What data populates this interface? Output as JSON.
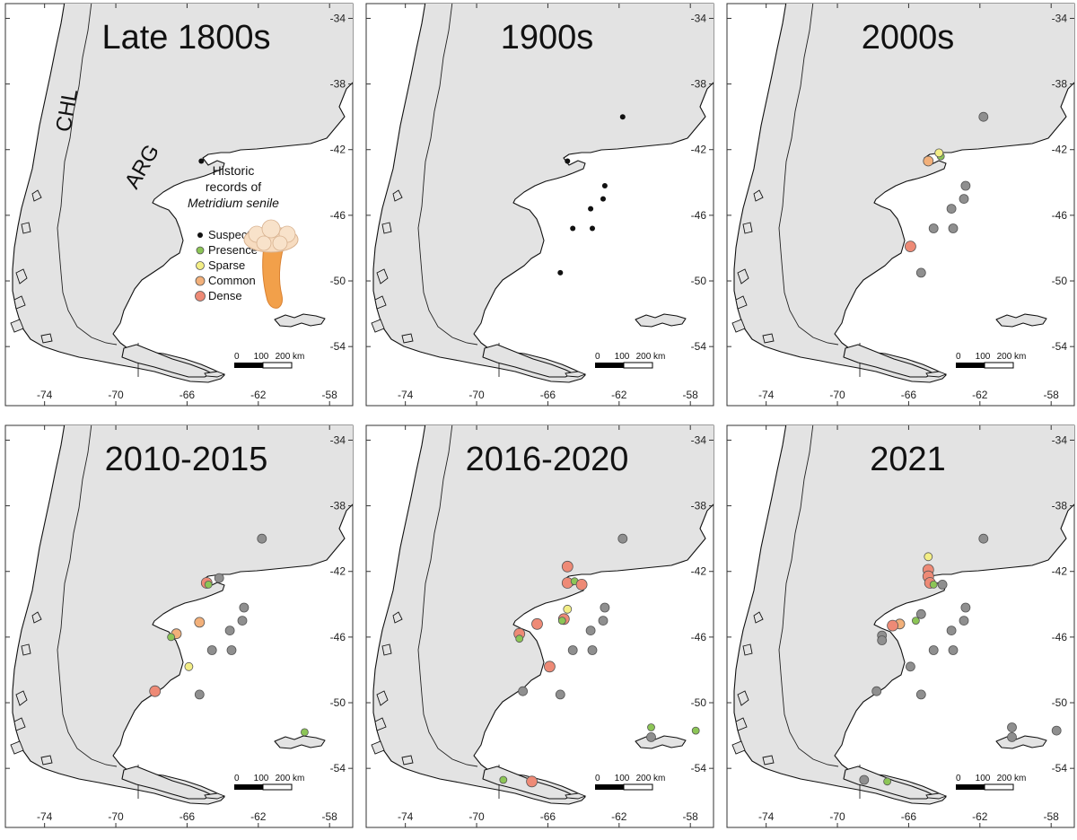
{
  "figure": {
    "lon_ticks": [
      "-74",
      "-70",
      "-66",
      "-62",
      "-58"
    ],
    "lat_ticks": [
      "-34",
      "-38",
      "-42",
      "-46",
      "-50",
      "-54"
    ],
    "country_labels": [
      "CHL",
      "ARG"
    ],
    "scale_labels": [
      "0",
      "100",
      "200 km"
    ]
  },
  "legend": {
    "title_line1": "Historic",
    "title_line2": "records of",
    "title_line3": "Metridium senile",
    "entries": [
      {
        "label": "Suspected",
        "color": "#111111"
      },
      {
        "label": "Presence",
        "color": "#8cc556"
      },
      {
        "label": "Sparse",
        "color": "#f3ee86"
      },
      {
        "label": "Common",
        "color": "#f2b07a"
      },
      {
        "label": "Dense",
        "color": "#ee8a76"
      }
    ]
  },
  "colors": {
    "land": "#e3e3e3",
    "suspected": "#111111",
    "presence": "#8cc556",
    "sparse": "#f3ee86",
    "common": "#f2b07a",
    "dense": "#ee8a76",
    "previous": "#8f8f8f"
  },
  "panels": [
    {
      "title": "Late 1800s",
      "records": [
        {
          "lon": -65.2,
          "lat": -42.7,
          "cat": "suspected"
        }
      ]
    },
    {
      "title": "1900s",
      "records": [
        {
          "lon": -61.8,
          "lat": -40.0,
          "cat": "suspected"
        },
        {
          "lon": -64.9,
          "lat": -42.7,
          "cat": "suspected"
        },
        {
          "lon": -62.8,
          "lat": -44.2,
          "cat": "suspected"
        },
        {
          "lon": -62.9,
          "lat": -45.0,
          "cat": "suspected"
        },
        {
          "lon": -63.6,
          "lat": -45.6,
          "cat": "suspected"
        },
        {
          "lon": -64.6,
          "lat": -46.8,
          "cat": "suspected"
        },
        {
          "lon": -63.5,
          "lat": -46.8,
          "cat": "suspected"
        },
        {
          "lon": -65.3,
          "lat": -49.5,
          "cat": "suspected"
        }
      ]
    },
    {
      "title": "2000s",
      "records": [
        {
          "lon": -61.8,
          "lat": -40.0,
          "cat": "previous"
        },
        {
          "lon": -62.8,
          "lat": -44.2,
          "cat": "previous"
        },
        {
          "lon": -62.9,
          "lat": -45.0,
          "cat": "previous"
        },
        {
          "lon": -63.6,
          "lat": -45.6,
          "cat": "previous"
        },
        {
          "lon": -64.6,
          "lat": -46.8,
          "cat": "previous"
        },
        {
          "lon": -63.5,
          "lat": -46.8,
          "cat": "previous"
        },
        {
          "lon": -65.3,
          "lat": -49.5,
          "cat": "previous"
        },
        {
          "lon": -64.9,
          "lat": -42.7,
          "cat": "common"
        },
        {
          "lon": -64.2,
          "lat": -42.4,
          "cat": "presence"
        },
        {
          "lon": -64.3,
          "lat": -42.2,
          "cat": "sparse"
        },
        {
          "lon": -65.9,
          "lat": -47.9,
          "cat": "dense"
        }
      ]
    },
    {
      "title": "2010-2015",
      "records": [
        {
          "lon": -61.8,
          "lat": -40.0,
          "cat": "previous"
        },
        {
          "lon": -62.8,
          "lat": -44.2,
          "cat": "previous"
        },
        {
          "lon": -62.9,
          "lat": -45.0,
          "cat": "previous"
        },
        {
          "lon": -63.6,
          "lat": -45.6,
          "cat": "previous"
        },
        {
          "lon": -64.6,
          "lat": -46.8,
          "cat": "previous"
        },
        {
          "lon": -63.5,
          "lat": -46.8,
          "cat": "previous"
        },
        {
          "lon": -65.3,
          "lat": -49.5,
          "cat": "previous"
        },
        {
          "lon": -64.2,
          "lat": -42.4,
          "cat": "previous"
        },
        {
          "lon": -64.9,
          "lat": -42.7,
          "cat": "dense"
        },
        {
          "lon": -64.8,
          "lat": -42.8,
          "cat": "presence"
        },
        {
          "lon": -65.3,
          "lat": -45.1,
          "cat": "common"
        },
        {
          "lon": -66.6,
          "lat": -45.8,
          "cat": "common"
        },
        {
          "lon": -66.9,
          "lat": -46.0,
          "cat": "presence"
        },
        {
          "lon": -65.9,
          "lat": -47.8,
          "cat": "sparse"
        },
        {
          "lon": -67.8,
          "lat": -49.3,
          "cat": "dense"
        },
        {
          "lon": -59.4,
          "lat": -51.8,
          "cat": "presence"
        }
      ]
    },
    {
      "title": "2016-2020",
      "records": [
        {
          "lon": -61.8,
          "lat": -40.0,
          "cat": "previous"
        },
        {
          "lon": -62.8,
          "lat": -44.2,
          "cat": "previous"
        },
        {
          "lon": -62.9,
          "lat": -45.0,
          "cat": "previous"
        },
        {
          "lon": -63.6,
          "lat": -45.6,
          "cat": "previous"
        },
        {
          "lon": -64.6,
          "lat": -46.8,
          "cat": "previous"
        },
        {
          "lon": -63.5,
          "lat": -46.8,
          "cat": "previous"
        },
        {
          "lon": -65.3,
          "lat": -49.5,
          "cat": "previous"
        },
        {
          "lon": -67.4,
          "lat": -49.3,
          "cat": "previous"
        },
        {
          "lon": -64.9,
          "lat": -41.7,
          "cat": "dense"
        },
        {
          "lon": -64.9,
          "lat": -42.7,
          "cat": "dense"
        },
        {
          "lon": -64.5,
          "lat": -42.6,
          "cat": "presence"
        },
        {
          "lon": -64.1,
          "lat": -42.8,
          "cat": "dense"
        },
        {
          "lon": -64.9,
          "lat": -44.3,
          "cat": "sparse"
        },
        {
          "lon": -65.1,
          "lat": -44.9,
          "cat": "dense"
        },
        {
          "lon": -65.2,
          "lat": -45.0,
          "cat": "presence"
        },
        {
          "lon": -66.6,
          "lat": -45.2,
          "cat": "dense"
        },
        {
          "lon": -67.6,
          "lat": -45.8,
          "cat": "dense"
        },
        {
          "lon": -67.6,
          "lat": -46.1,
          "cat": "presence"
        },
        {
          "lon": -65.9,
          "lat": -47.8,
          "cat": "dense"
        },
        {
          "lon": -60.2,
          "lat": -51.5,
          "cat": "presence"
        },
        {
          "lon": -60.2,
          "lat": -52.1,
          "cat": "previous"
        },
        {
          "lon": -57.7,
          "lat": -51.7,
          "cat": "presence"
        },
        {
          "lon": -68.5,
          "lat": -54.7,
          "cat": "presence"
        },
        {
          "lon": -66.9,
          "lat": -54.8,
          "cat": "dense"
        }
      ]
    },
    {
      "title": "2021",
      "records": [
        {
          "lon": -61.8,
          "lat": -40.0,
          "cat": "previous"
        },
        {
          "lon": -62.8,
          "lat": -44.2,
          "cat": "previous"
        },
        {
          "lon": -62.9,
          "lat": -45.0,
          "cat": "previous"
        },
        {
          "lon": -63.6,
          "lat": -45.6,
          "cat": "previous"
        },
        {
          "lon": -63.5,
          "lat": -46.8,
          "cat": "previous"
        },
        {
          "lon": -64.6,
          "lat": -46.8,
          "cat": "previous"
        },
        {
          "lon": -65.3,
          "lat": -49.5,
          "cat": "previous"
        },
        {
          "lon": -65.9,
          "lat": -47.8,
          "cat": "previous"
        },
        {
          "lon": -67.8,
          "lat": -49.3,
          "cat": "previous"
        },
        {
          "lon": -67.5,
          "lat": -45.9,
          "cat": "previous"
        },
        {
          "lon": -67.5,
          "lat": -46.2,
          "cat": "previous"
        },
        {
          "lon": -64.1,
          "lat": -42.8,
          "cat": "previous"
        },
        {
          "lon": -65.3,
          "lat": -44.6,
          "cat": "previous"
        },
        {
          "lon": -60.2,
          "lat": -51.5,
          "cat": "previous"
        },
        {
          "lon": -60.2,
          "lat": -52.1,
          "cat": "previous"
        },
        {
          "lon": -57.7,
          "lat": -51.7,
          "cat": "previous"
        },
        {
          "lon": -68.5,
          "lat": -54.7,
          "cat": "previous"
        },
        {
          "lon": -64.9,
          "lat": -41.1,
          "cat": "sparse"
        },
        {
          "lon": -64.9,
          "lat": -41.9,
          "cat": "dense"
        },
        {
          "lon": -64.9,
          "lat": -42.3,
          "cat": "dense"
        },
        {
          "lon": -64.8,
          "lat": -42.7,
          "cat": "dense"
        },
        {
          "lon": -64.6,
          "lat": -42.8,
          "cat": "presence"
        },
        {
          "lon": -65.6,
          "lat": -45.0,
          "cat": "presence"
        },
        {
          "lon": -66.5,
          "lat": -45.2,
          "cat": "common"
        },
        {
          "lon": -66.9,
          "lat": -45.3,
          "cat": "dense"
        },
        {
          "lon": -67.2,
          "lat": -54.8,
          "cat": "presence"
        }
      ]
    }
  ]
}
